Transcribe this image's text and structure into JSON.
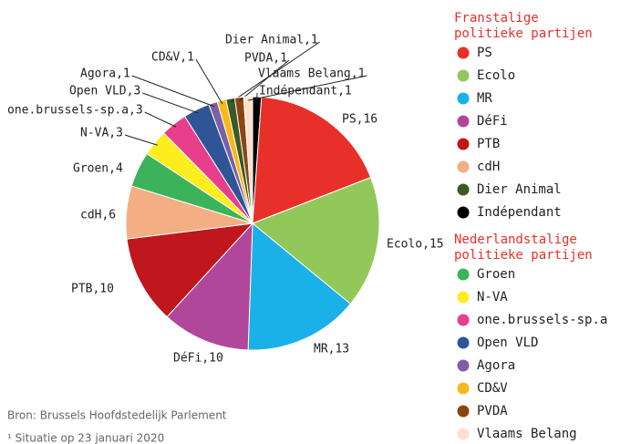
{
  "chart_data": {
    "type": "pie",
    "categories": [
      "Indépendant",
      "PS",
      "Ecolo",
      "MR",
      "DéFi",
      "PTB",
      "cdH",
      "Groen",
      "N-VA",
      "one.brussels-sp.a",
      "Open VLD",
      "Agora",
      "CD&V",
      "Dier Animal",
      "PVDA",
      "Vlaams Belang"
    ],
    "values": [
      1,
      16,
      15,
      13,
      10,
      10,
      6,
      4,
      3,
      3,
      3,
      1,
      1,
      1,
      1,
      1
    ],
    "value_labels": [
      "Indépendant,1",
      "PS,16",
      "Ecolo,15",
      "MR,13",
      "DéFi,10",
      "PTB,10",
      "cdH,6",
      "Groen,4",
      "N-VA,3",
      "one.brussels-sp.a,3",
      "Open VLD,3",
      "Agora,1",
      "CD&V,1",
      "Dier Animal,1",
      "PVDA,1",
      "Vlaams Belang,1"
    ],
    "colors": [
      "#000000",
      "#e8302a",
      "#92c85a",
      "#1ab0e8",
      "#b0479b",
      "#c0161d",
      "#f3ae84",
      "#3cb25a",
      "#fced1f",
      "#e83e8c",
      "#2f5597",
      "#7b60a8",
      "#f8b81c",
      "#3b5a25",
      "#8b4513",
      "#fde0cc"
    ],
    "legend": [
      {
        "title": "Franstalige politieke partijen",
        "entries": [
          "PS",
          "Ecolo",
          "MR",
          "DéFi",
          "PTB",
          "cdH",
          "Dier Animal",
          "Indépendant"
        ]
      },
      {
        "title": "Nederlandstalige politieke partijen",
        "entries": [
          "Groen",
          "N-VA",
          "one.brussels-sp.a",
          "Open VLD",
          "Agora",
          "CD&V",
          "PVDA",
          "Vlaams Belang"
        ]
      }
    ],
    "source": "Bron: Brussels Hoofdstedelijk Parlement",
    "note": "¹ Situatie op 23 januari 2020"
  }
}
